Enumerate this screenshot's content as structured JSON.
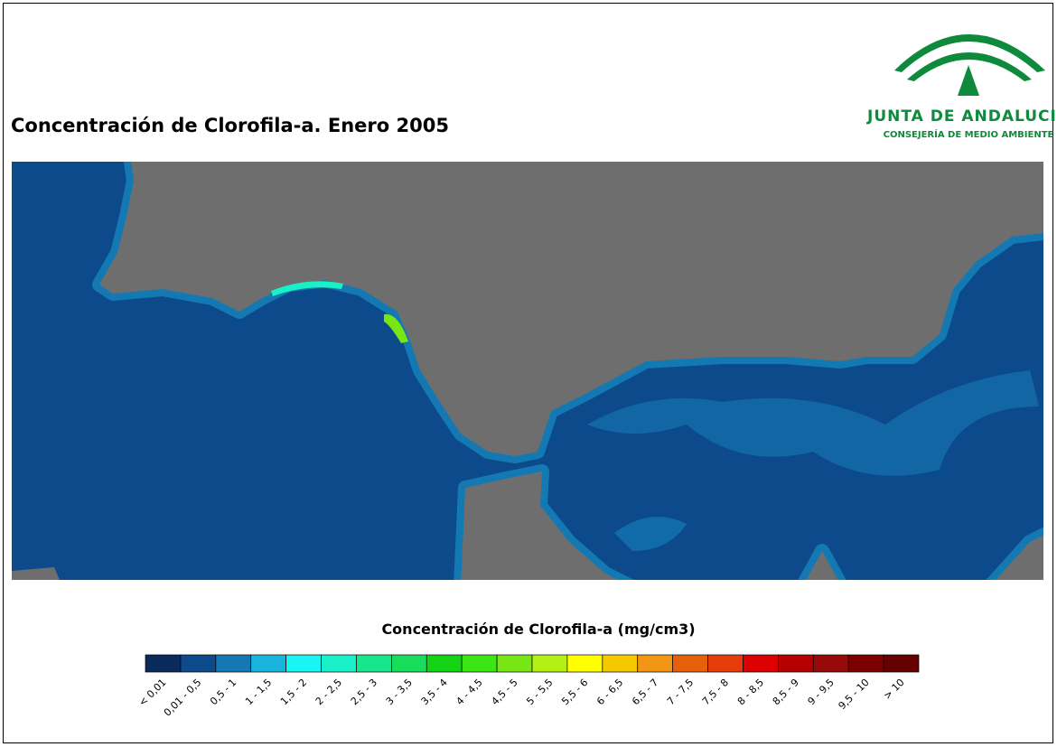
{
  "title": "Concentración de Clorofila-a. Enero 2005",
  "logo": {
    "name": "JUNTA DE ANDALUCIA",
    "department": "CONSEJERÍA DE MEDIO AMBIENTE"
  },
  "legend": {
    "title": "Concentración de Clorofila-a (mg/cm3)",
    "items": [
      {
        "label": "< 0,01",
        "color": "#0b2a5c"
      },
      {
        "label": "0,01 - 0,5",
        "color": "#0d4a8c"
      },
      {
        "label": "0,5 - 1",
        "color": "#1479b3"
      },
      {
        "label": "1 - 1,5",
        "color": "#19b4dc"
      },
      {
        "label": "1,5 - 2",
        "color": "#19f5f5"
      },
      {
        "label": "2 - 2,5",
        "color": "#19f0c8"
      },
      {
        "label": "2,5 - 3",
        "color": "#19e68c"
      },
      {
        "label": "3 - 3,5",
        "color": "#19dc5a"
      },
      {
        "label": "3,5 - 4",
        "color": "#14d214"
      },
      {
        "label": "4 - 4,5",
        "color": "#3ce614"
      },
      {
        "label": "4,5 - 5",
        "color": "#78e614"
      },
      {
        "label": "5 - 5,5",
        "color": "#b4f014"
      },
      {
        "label": "5,5 - 6",
        "color": "#ffff00"
      },
      {
        "label": "6 - 6,5",
        "color": "#f5c800"
      },
      {
        "label": "6,5 - 7",
        "color": "#f09614"
      },
      {
        "label": "7 - 7,5",
        "color": "#e65f0a"
      },
      {
        "label": "7,5 - 8",
        "color": "#e63c0a"
      },
      {
        "label": "8 - 8,5",
        "color": "#dc0000"
      },
      {
        "label": "8,5 - 9",
        "color": "#b40000"
      },
      {
        "label": "9 - 9,5",
        "color": "#960a0a"
      },
      {
        "label": "9,5 - 10",
        "color": "#7d0000"
      },
      {
        "label": "> 10",
        "color": "#640000"
      }
    ]
  }
}
